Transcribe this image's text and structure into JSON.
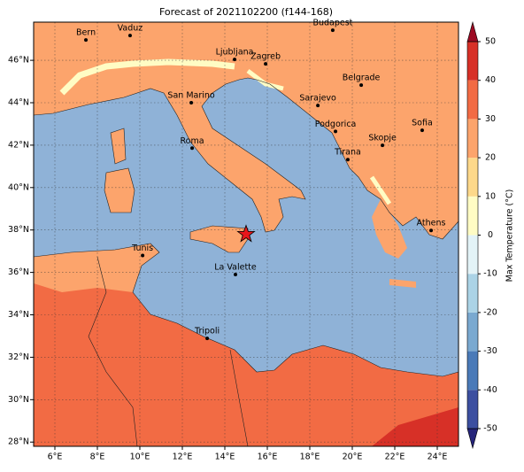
{
  "title": "Forecast of 2021102200 (f144-168)",
  "map": {
    "lonlim": [
      5,
      25
    ],
    "latlim": [
      27.8,
      47.8
    ],
    "lon_ticks": [
      {
        "value": 6,
        "label": "6°E"
      },
      {
        "value": 8,
        "label": "8°E"
      },
      {
        "value": 10,
        "label": "10°E"
      },
      {
        "value": 12,
        "label": "12°E"
      },
      {
        "value": 14,
        "label": "14°E"
      },
      {
        "value": 16,
        "label": "16°E"
      },
      {
        "value": 18,
        "label": "18°E"
      },
      {
        "value": 20,
        "label": "20°E"
      },
      {
        "value": 22,
        "label": "22°E"
      },
      {
        "value": 24,
        "label": "24°E"
      }
    ],
    "lat_ticks": [
      {
        "value": 28,
        "label": "28°N"
      },
      {
        "value": 30,
        "label": "30°N"
      },
      {
        "value": 32,
        "label": "32°N"
      },
      {
        "value": 34,
        "label": "34°N"
      },
      {
        "value": 36,
        "label": "36°N"
      },
      {
        "value": 38,
        "label": "38°N"
      },
      {
        "value": 40,
        "label": "40°N"
      },
      {
        "value": 42,
        "label": "42°N"
      },
      {
        "value": 44,
        "label": "44°N"
      },
      {
        "value": 46,
        "label": "46°N"
      }
    ],
    "cities": [
      {
        "name": "Bern",
        "lon": 7.46,
        "lat": 46.96
      },
      {
        "name": "Vaduz",
        "lon": 9.54,
        "lat": 47.17
      },
      {
        "name": "Budapest",
        "lon": 19.08,
        "lat": 47.42
      },
      {
        "name": "Ljubljana",
        "lon": 14.46,
        "lat": 46.04
      },
      {
        "name": "Zagreb",
        "lon": 15.92,
        "lat": 45.83
      },
      {
        "name": "Belgrade",
        "lon": 20.42,
        "lat": 44.83
      },
      {
        "name": "San Marino",
        "lon": 12.42,
        "lat": 44.0
      },
      {
        "name": "Sarajevo",
        "lon": 18.38,
        "lat": 43.87
      },
      {
        "name": "Sofia",
        "lon": 23.29,
        "lat": 42.7
      },
      {
        "name": "Podgorica",
        "lon": 19.21,
        "lat": 42.65
      },
      {
        "name": "Skopje",
        "lon": 21.42,
        "lat": 41.99
      },
      {
        "name": "Roma",
        "lon": 12.46,
        "lat": 41.86
      },
      {
        "name": "Tirana",
        "lon": 19.79,
        "lat": 41.32
      },
      {
        "name": "Athens",
        "lon": 23.71,
        "lat": 37.98
      },
      {
        "name": "Tunis",
        "lon": 10.13,
        "lat": 36.8
      },
      {
        "name": "La Valette",
        "lon": 14.5,
        "lat": 35.9
      },
      {
        "name": "Tripoli",
        "lon": 13.17,
        "lat": 32.89
      }
    ],
    "marker": {
      "lon": 15.0,
      "lat": 37.8,
      "color": "#e8151b"
    }
  },
  "colorbar": {
    "label": "Max Temperature (°C)",
    "lim": [
      -50,
      50
    ],
    "ticks": [
      -50,
      -40,
      -30,
      -20,
      -10,
      0,
      10,
      20,
      30,
      40,
      50
    ],
    "colors": [
      "#3c4fa0",
      "#4a7ab8",
      "#7aa9d0",
      "#abd3e6",
      "#e3f3f7",
      "#fffcc4",
      "#fdd88a",
      "#fca46c",
      "#f26b44",
      "#d73027"
    ],
    "under": "#25247a",
    "over": "#9c0a23"
  }
}
